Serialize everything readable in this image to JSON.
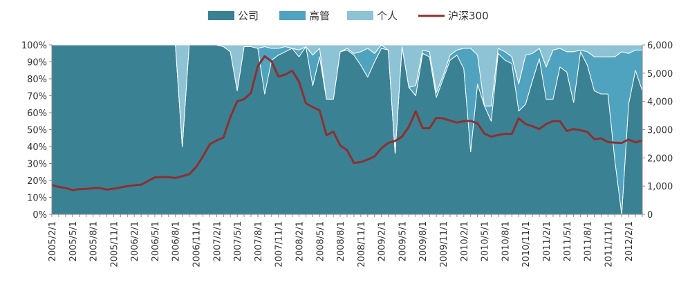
{
  "chart_data": {
    "type": "area",
    "stacked": true,
    "normalized": true,
    "legend": {
      "placement": "top",
      "entries": [
        {
          "label": "公司",
          "kind": "area",
          "color": "#3A8194"
        },
        {
          "label": "高管",
          "kind": "area",
          "color": "#4FA3BE"
        },
        {
          "label": "个人",
          "kind": "area",
          "color": "#8EC3D5"
        },
        {
          "label": "沪深300",
          "kind": "line",
          "color": "#8E2F2F"
        }
      ]
    },
    "x_tick_labels": [
      "2005/2/1",
      "2005/5/1",
      "2005/8/1",
      "2005/11/1",
      "2006/2/1",
      "2006/5/1",
      "2006/8/1",
      "2006/11/1",
      "2007/2/1",
      "2007/5/1",
      "2007/8/1",
      "2007/11/1",
      "2008/2/1",
      "2008/5/1",
      "2008/8/1",
      "2008/11/1",
      "2009/2/1",
      "2009/5/1",
      "2009/8/1",
      "2009/11/1",
      "2010/2/1",
      "2010/5/1",
      "2010/8/1",
      "2010/11/1",
      "2011/2/1",
      "2011/5/1",
      "2011/8/1",
      "2011/11/1",
      "2012/2/1"
    ],
    "y_left": {
      "min": 0,
      "max": 100,
      "unit": "%",
      "ticks": [
        "0%",
        "10%",
        "20%",
        "30%",
        "40%",
        "50%",
        "60%",
        "70%",
        "80%",
        "90%",
        "100%"
      ]
    },
    "y_right": {
      "min": 0,
      "max": 6000,
      "ticks": [
        "0",
        "1,000",
        "2,000",
        "3,000",
        "4,000",
        "5,000",
        "6,000"
      ]
    },
    "grid": false,
    "months": [
      "2005/2",
      "2005/3",
      "2005/4",
      "2005/5",
      "2005/6",
      "2005/7",
      "2005/8",
      "2005/9",
      "2005/10",
      "2005/11",
      "2005/12",
      "2006/1",
      "2006/2",
      "2006/3",
      "2006/4",
      "2006/5",
      "2006/6",
      "2006/7",
      "2006/8",
      "2006/9",
      "2006/10",
      "2006/11",
      "2006/12",
      "2007/1",
      "2007/2",
      "2007/3",
      "2007/4",
      "2007/5",
      "2007/6",
      "2007/7",
      "2007/8",
      "2007/9",
      "2007/10",
      "2007/11",
      "2007/12",
      "2008/1",
      "2008/2",
      "2008/3",
      "2008/4",
      "2008/5",
      "2008/6",
      "2008/7",
      "2008/8",
      "2008/9",
      "2008/10",
      "2008/11",
      "2008/12",
      "2009/1",
      "2009/2",
      "2009/3",
      "2009/4",
      "2009/5",
      "2009/6",
      "2009/7",
      "2009/8",
      "2009/9",
      "2009/10",
      "2009/11",
      "2009/12",
      "2010/1",
      "2010/2",
      "2010/3",
      "2010/4",
      "2010/5",
      "2010/6",
      "2010/7",
      "2010/8",
      "2010/9",
      "2010/10",
      "2010/11",
      "2010/12",
      "2011/1",
      "2011/2",
      "2011/3",
      "2011/4",
      "2011/5",
      "2011/6",
      "2011/7",
      "2011/8",
      "2011/9",
      "2011/10",
      "2011/11",
      "2011/12",
      "2012/1",
      "2012/2",
      "2012/3",
      "2012/4"
    ],
    "series": [
      {
        "name": "公司",
        "axis": "left",
        "values": [
          100,
          100,
          100,
          100,
          100,
          100,
          100,
          100,
          100,
          100,
          100,
          100,
          100,
          100,
          100,
          100,
          100,
          100,
          100,
          40,
          100,
          100,
          100,
          100,
          100,
          99,
          96,
          73,
          99,
          99,
          98,
          71,
          91,
          94,
          96,
          98,
          93,
          99,
          76,
          93,
          68,
          68,
          96,
          97,
          94,
          88,
          81,
          90,
          98,
          97,
          36,
          99,
          75,
          70,
          95,
          93,
          69,
          80,
          91,
          94,
          86,
          37,
          77,
          64,
          55,
          95,
          91,
          89,
          61,
          65,
          79,
          92,
          68,
          68,
          87,
          84,
          66,
          96,
          88,
          73,
          71,
          71,
          32,
          0,
          65,
          85,
          73
        ],
        "values_estimated_from_pixels": true
      },
      {
        "name": "高管",
        "axis": "left",
        "values": [
          0,
          0,
          0,
          0,
          0,
          0,
          0,
          0,
          0,
          0,
          0,
          0,
          0,
          0,
          0,
          0,
          0,
          0,
          0,
          0,
          0,
          0,
          0,
          0,
          0,
          0,
          0,
          0,
          0,
          0,
          0,
          28,
          7,
          4,
          3,
          0,
          4,
          0,
          18,
          5,
          0,
          0,
          0,
          1,
          1,
          8,
          17,
          5,
          2,
          0,
          0,
          0,
          0,
          6,
          2,
          3,
          3,
          2,
          3,
          3,
          12,
          61,
          17,
          0,
          9,
          3,
          5,
          4,
          16,
          29,
          16,
          6,
          19,
          29,
          11,
          12,
          30,
          1,
          8,
          20,
          22,
          22,
          61,
          96,
          30,
          12,
          24
        ],
        "values_estimated_from_pixels": true
      },
      {
        "name": "个人",
        "axis": "left",
        "values": [
          0,
          0,
          0,
          0,
          0,
          0,
          0,
          0,
          0,
          0,
          0,
          0,
          0,
          0,
          0,
          0,
          0,
          0,
          0,
          60,
          0,
          0,
          0,
          0,
          0,
          1,
          4,
          27,
          1,
          1,
          2,
          1,
          2,
          2,
          1,
          2,
          3,
          1,
          6,
          2,
          32,
          32,
          4,
          2,
          5,
          4,
          2,
          5,
          0,
          3,
          64,
          1,
          25,
          24,
          3,
          4,
          28,
          18,
          6,
          3,
          2,
          2,
          6,
          36,
          36,
          2,
          4,
          7,
          23,
          6,
          5,
          2,
          13,
          3,
          2,
          4,
          4,
          3,
          4,
          7,
          7,
          7,
          7,
          4,
          5,
          3,
          3
        ],
        "values_estimated_from_pixels": true
      },
      {
        "name": "沪深300",
        "axis": "right",
        "values": [
          1040,
          970,
          935,
          860,
          890,
          900,
          930,
          935,
          875,
          910,
          950,
          1000,
          1030,
          1050,
          1180,
          1310,
          1320,
          1320,
          1290,
          1350,
          1420,
          1670,
          2050,
          2480,
          2620,
          2720,
          3450,
          4000,
          4080,
          4300,
          5250,
          5600,
          5420,
          4880,
          4950,
          5090,
          4700,
          3930,
          3800,
          3680,
          2800,
          2930,
          2440,
          2270,
          1820,
          1850,
          1940,
          2050,
          2340,
          2530,
          2600,
          2750,
          3100,
          3650,
          3050,
          3050,
          3420,
          3400,
          3320,
          3250,
          3300,
          3310,
          3220,
          2860,
          2750,
          2810,
          2850,
          2850,
          3400,
          3200,
          3120,
          3020,
          3200,
          3300,
          3300,
          2950,
          3020,
          2980,
          2920,
          2660,
          2690,
          2560,
          2540,
          2530,
          2650,
          2550,
          2610
        ],
        "values_estimated_from_pixels": true
      }
    ]
  }
}
